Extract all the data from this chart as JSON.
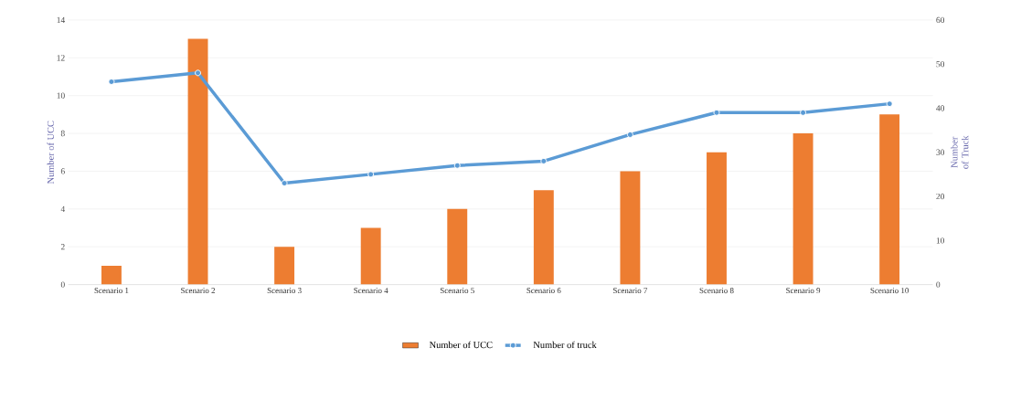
{
  "chart_data": {
    "type": "bar",
    "categories": [
      "Scenario 1",
      "Scenario 2",
      "Scenario 3",
      "Scenario 4",
      "Scenario 5",
      "Scenario 6",
      "Scenario 7",
      "Scenario 8",
      "Scenario 9",
      "Scenario 10"
    ],
    "series": [
      {
        "name": "Number of UCC",
        "color": "#ed7d31",
        "values": [
          1,
          13,
          2,
          3,
          4,
          5,
          6,
          7,
          8,
          9
        ]
      },
      {
        "name": "Number of truck",
        "type": "line",
        "axis": "y2",
        "color": "#5b9bd5",
        "marker": "circle",
        "values": [
          46,
          48,
          23,
          25,
          27,
          28,
          34,
          39,
          39,
          41
        ]
      }
    ],
    "ylabel": "Number of  UCC",
    "y2label": "Number of Truck",
    "ylim": [
      0,
      14
    ],
    "yticks": [
      0,
      2,
      4,
      6,
      8,
      10,
      12,
      14
    ],
    "y2lim": [
      0,
      60
    ],
    "y2ticks": [
      0,
      10,
      20,
      30,
      40,
      50,
      60
    ],
    "grid": "y",
    "legend": "bottom"
  }
}
